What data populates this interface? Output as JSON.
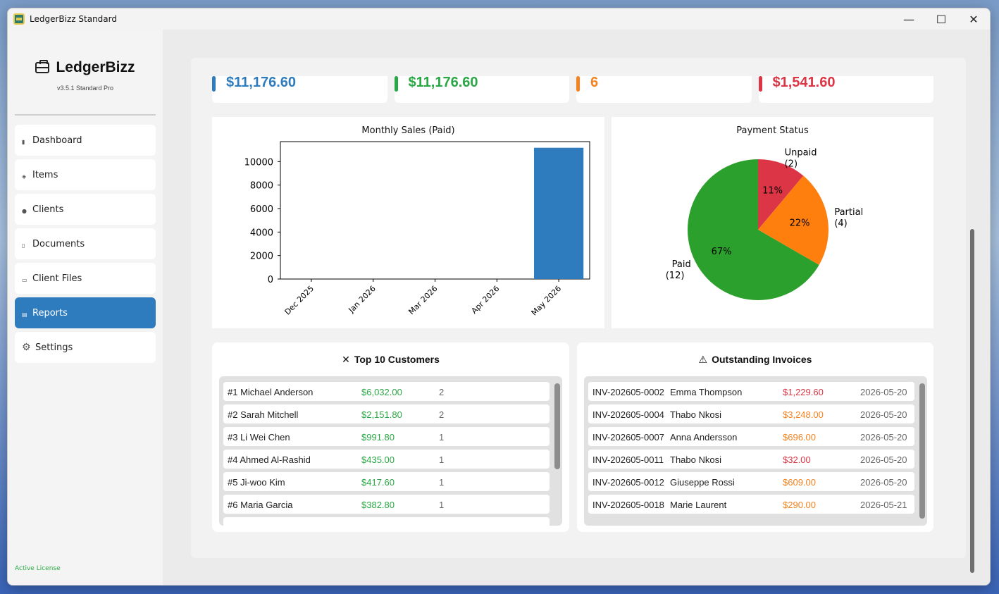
{
  "window": {
    "title": "LedgerBizz Standard",
    "controls": [
      "—",
      "☐",
      "✕"
    ]
  },
  "sidebar": {
    "brand": "LedgerBizz",
    "version": "v3.5.1 Standard Pro",
    "items": [
      {
        "label": "Dashboard",
        "icon": "bar-chart-icon",
        "glyph": "▮"
      },
      {
        "label": "Items",
        "icon": "package-icon",
        "glyph": "◈"
      },
      {
        "label": "Clients",
        "icon": "people-icon",
        "glyph": "●"
      },
      {
        "label": "Documents",
        "icon": "document-icon",
        "glyph": "▯"
      },
      {
        "label": "Client Files",
        "icon": "folder-icon",
        "glyph": "▭"
      },
      {
        "label": "Reports",
        "icon": "chart-icon",
        "glyph": "▤"
      },
      {
        "label": "Settings",
        "icon": "gear-icon",
        "glyph": "⚙"
      }
    ],
    "active_item": "Reports",
    "license": "Active License"
  },
  "stats": [
    {
      "value": "$11,176.60",
      "color": "#2e7bbd"
    },
    {
      "value": "$11,176.60",
      "color": "#2aa745"
    },
    {
      "value": "6",
      "color": "#f5821f"
    },
    {
      "value": "$1,541.60",
      "color": "#dc3545"
    }
  ],
  "bar_chart_title": "Monthly Sales (Paid)",
  "pie_chart_title": "Payment Status",
  "chart_data": [
    {
      "type": "bar",
      "title": "Monthly Sales (Paid)",
      "categories": [
        "Dec 2025",
        "Jan 2026",
        "Mar 2026",
        "Apr 2026",
        "May 2026"
      ],
      "values": [
        0,
        0,
        0,
        0,
        11176.6
      ],
      "yticks": [
        0,
        2000,
        4000,
        6000,
        8000,
        10000
      ],
      "ylim": [
        0,
        11700
      ],
      "color": "#2e7bbd",
      "grid": false
    },
    {
      "type": "pie",
      "title": "Payment Status",
      "slices": [
        {
          "label": "Unpaid",
          "count": "(2)",
          "value": 2,
          "pct": "11%",
          "color": "#dc3545"
        },
        {
          "label": "Partial",
          "count": "(4)",
          "value": 4,
          "pct": "22%",
          "color": "#ff7f0e"
        },
        {
          "label": "Paid",
          "count": "(12)",
          "value": 12,
          "pct": "67%",
          "color": "#2ca02c"
        }
      ]
    }
  ],
  "top_customers": {
    "title": "Top 10 Customers",
    "icon": "trophy-icon",
    "rows": [
      {
        "name": "#1 Michael Anderson",
        "amount": "$6,032.00",
        "count": "2"
      },
      {
        "name": "#2 Sarah Mitchell",
        "amount": "$2,151.80",
        "count": "2"
      },
      {
        "name": "#3 Li Wei Chen",
        "amount": "$991.80",
        "count": "1"
      },
      {
        "name": "#4 Ahmed Al-Rashid",
        "amount": "$435.00",
        "count": "1"
      },
      {
        "name": "#5 Ji-woo Kim",
        "amount": "$417.60",
        "count": "1"
      },
      {
        "name": "#6 Maria Garcia",
        "amount": "$382.80",
        "count": "1"
      }
    ]
  },
  "outstanding": {
    "title": "Outstanding Invoices",
    "icon": "warning-icon",
    "rows": [
      {
        "invoice": "INV-202605-0002",
        "client": "Emma Thompson",
        "amount": "$1,229.60",
        "date": "2026-05-20",
        "color": "#dc3545"
      },
      {
        "invoice": "INV-202605-0004",
        "client": "Thabo Nkosi",
        "amount": "$3,248.00",
        "date": "2026-05-20",
        "color": "#f5821f"
      },
      {
        "invoice": "INV-202605-0007",
        "client": "Anna Andersson",
        "amount": "$696.00",
        "date": "2026-05-20",
        "color": "#f5821f"
      },
      {
        "invoice": "INV-202605-0011",
        "client": "Thabo Nkosi",
        "amount": "$32.00",
        "date": "2026-05-20",
        "color": "#dc3545"
      },
      {
        "invoice": "INV-202605-0012",
        "client": "Giuseppe Rossi",
        "amount": "$609.00",
        "date": "2026-05-20",
        "color": "#f5821f"
      },
      {
        "invoice": "INV-202605-0018",
        "client": "Marie Laurent",
        "amount": "$290.00",
        "date": "2026-05-21",
        "color": "#f5821f"
      }
    ]
  }
}
